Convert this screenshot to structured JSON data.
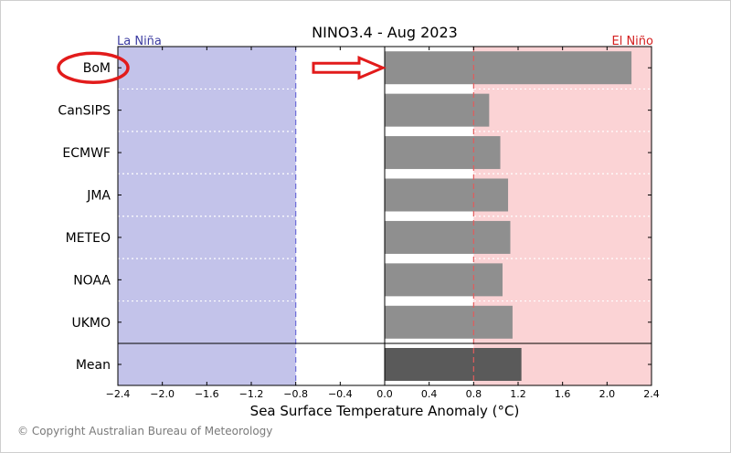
{
  "chart_data": {
    "type": "bar",
    "orientation": "horizontal",
    "title": "NINO3.4 - Aug 2023",
    "xlabel": "Sea Surface Temperature Anomaly (°C)",
    "ylabel": "",
    "xlim": [
      -2.4,
      2.4
    ],
    "xticks": [
      -2.4,
      -2.0,
      -1.6,
      -1.2,
      -0.8,
      -0.4,
      0.0,
      0.4,
      0.8,
      1.2,
      1.6,
      2.0,
      2.4
    ],
    "xtick_labels": [
      "−2.4",
      "−2.0",
      "−1.6",
      "−1.2",
      "−0.8",
      "−0.4",
      "0.0",
      "0.4",
      "0.8",
      "1.2",
      "1.6",
      "2.0",
      "2.4"
    ],
    "categories": [
      "BoM",
      "CanSIPS",
      "ECMWF",
      "JMA",
      "METEO",
      "NOAA",
      "UKMO",
      "Mean"
    ],
    "values": [
      2.22,
      0.94,
      1.04,
      1.11,
      1.13,
      1.06,
      1.15,
      1.23
    ],
    "la_nina": {
      "label": "La Niña",
      "threshold": -0.8,
      "color": "#c3c3ea",
      "label_color": "#3b3ba0"
    },
    "el_nino": {
      "label": "El Niño",
      "threshold": 0.8,
      "color": "#fbd3d5",
      "label_color": "#d42020"
    },
    "bar_color": "#8f8f8f",
    "mean_bar_color": "#5a5a5a",
    "highlight": {
      "category": "BoM",
      "annotation": "circle-and-arrow",
      "color": "#e21b1b"
    }
  },
  "copyright": "© Copyright Australian Bureau of Meteorology"
}
